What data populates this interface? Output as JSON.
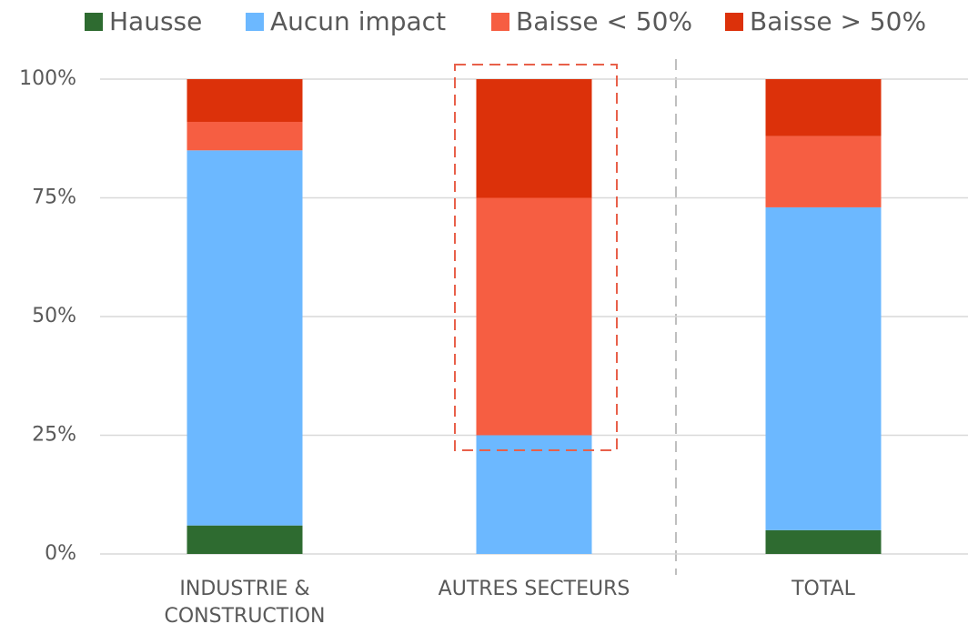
{
  "chart_data": {
    "type": "stacked_bar",
    "categories": [
      "INDUSTRIE & CONSTRUCTION",
      "AUTRES SECTEURS",
      "TOTAL"
    ],
    "series": [
      {
        "name": "Hausse",
        "color": "#2e6b30",
        "values": [
          6,
          0,
          5
        ]
      },
      {
        "name": "Aucun impact",
        "color": "#6cb8ff",
        "values": [
          79,
          25,
          68
        ]
      },
      {
        "name": "Baisse < 50%",
        "color": "#f65e42",
        "values": [
          6,
          50,
          15
        ]
      },
      {
        "name": "Baisse > 50%",
        "color": "#dc310a",
        "values": [
          9,
          25,
          12
        ]
      }
    ],
    "ylim": [
      0,
      100
    ],
    "yticks": [
      {
        "value": 0,
        "label": "0%"
      },
      {
        "value": 25,
        "label": "25%"
      },
      {
        "value": 50,
        "label": "50%"
      },
      {
        "value": 75,
        "label": "75%"
      },
      {
        "value": 100,
        "label": "100%"
      }
    ],
    "grid": true,
    "legend": "top"
  }
}
